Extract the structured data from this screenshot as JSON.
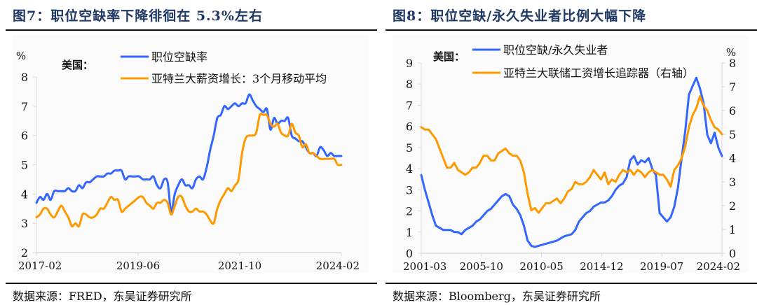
{
  "figures": [
    {
      "title": "图7：职位空缺率下降徘徊在 5.3%左右",
      "source": "数据来源：FRED，东吴证券研究所"
    },
    {
      "title": "图8：职位空缺/永久失业者比例大幅下降",
      "source": "数据来源：Bloomberg，东吴证券研究所"
    }
  ],
  "chart_data": [
    {
      "type": "line",
      "title": "职位空缺率下降徘徊在 5.3%左右",
      "region_label": "美国：",
      "ylabel": "%",
      "ylim": [
        2,
        8
      ],
      "yticks": [
        "2",
        "3",
        "4",
        "5",
        "6",
        "7",
        "8"
      ],
      "xticks": [
        "2017-02",
        "2019-06",
        "2021-10",
        "2024-02"
      ],
      "xrange": [
        "2017-02",
        "2024-02"
      ],
      "grid": false,
      "legend_position": "top-center",
      "colors": {
        "series1": "#3366ff",
        "series2": "#ff9900"
      },
      "series": [
        {
          "name": "职位空缺率",
          "axis": "left",
          "values": [
            3.7,
            3.9,
            3.8,
            4.0,
            3.8,
            4.1,
            4.1,
            4.1,
            4.1,
            4.2,
            4.1,
            4.1,
            4.3,
            4.2,
            4.4,
            4.4,
            4.5,
            4.6,
            4.6,
            4.6,
            4.7,
            4.7,
            4.8,
            4.8,
            4.8,
            4.5,
            4.6,
            4.6,
            4.6,
            4.6,
            4.5,
            4.5,
            4.5,
            4.6,
            4.3,
            4.2,
            4.5,
            4.4,
            3.4,
            4.0,
            4.3,
            4.5,
            4.3,
            4.3,
            4.2,
            4.5,
            4.6,
            4.5,
            4.9,
            5.5,
            6.0,
            6.6,
            6.7,
            7.0,
            6.9,
            7.0,
            7.1,
            7.0,
            7.1,
            7.1,
            7.4,
            7.2,
            7.0,
            6.9,
            6.8,
            6.9,
            6.2,
            6.6,
            6.4,
            6.5,
            6.5,
            6.6,
            6.0,
            5.9,
            5.8,
            5.8,
            5.6,
            5.4,
            5.4,
            5.3,
            5.6,
            5.5,
            5.3,
            5.4,
            5.3,
            5.3,
            5.3
          ]
        },
        {
          "name": "亚特兰大薪资增长：3个月移动平均",
          "axis": "left",
          "values": [
            3.2,
            3.3,
            3.5,
            3.5,
            3.3,
            3.2,
            3.4,
            3.6,
            3.4,
            3.2,
            2.9,
            3.0,
            2.9,
            3.3,
            3.3,
            3.2,
            3.2,
            3.3,
            3.5,
            3.5,
            3.7,
            3.9,
            3.8,
            3.8,
            3.4,
            3.5,
            3.6,
            3.7,
            3.8,
            3.9,
            3.9,
            3.7,
            3.6,
            3.5,
            3.7,
            3.7,
            3.8,
            3.7,
            3.3,
            3.6,
            3.9,
            3.9,
            3.6,
            3.4,
            3.4,
            3.5,
            3.4,
            3.4,
            3.3,
            3.1,
            3.0,
            3.5,
            3.8,
            4.0,
            4.2,
            4.1,
            4.3,
            4.5,
            5.4,
            5.9,
            6.0,
            6.0,
            6.1,
            6.7,
            6.7,
            6.7,
            6.4,
            6.3,
            6.4,
            6.1,
            6.0,
            6.0,
            6.4,
            6.1,
            6.0,
            5.6,
            5.7,
            5.4,
            5.4,
            5.3,
            5.2,
            5.2,
            5.2,
            5.2,
            5.2,
            5.0,
            5.0
          ]
        }
      ]
    },
    {
      "type": "line",
      "title": "职位空缺/永久失业者比例大幅下降",
      "region_label": "美国：",
      "ylabel_right": "%",
      "ylim": [
        0,
        9
      ],
      "ylim_right": [
        0,
        8
      ],
      "yticks": [
        "0",
        "1",
        "2",
        "3",
        "4",
        "5",
        "6",
        "7",
        "8",
        "9"
      ],
      "yticks_right": [
        "0",
        "1",
        "2",
        "3",
        "4",
        "5",
        "6",
        "7",
        "8"
      ],
      "xticks": [
        "2001-03",
        "2005-10",
        "2010-05",
        "2014-12",
        "2019-07",
        "2024-02"
      ],
      "xrange": [
        "2001-03",
        "2024-02"
      ],
      "grid": false,
      "legend_position": "top-center",
      "colors": {
        "series1": "#3366ff",
        "series2": "#ff9900"
      },
      "series": [
        {
          "name": "职位空缺/永久失业者",
          "axis": "left",
          "values": [
            3.7,
            3.0,
            2.4,
            1.8,
            1.3,
            1.2,
            1.1,
            1.1,
            1.1,
            1.0,
            1.0,
            0.9,
            1.1,
            1.2,
            1.3,
            1.5,
            1.6,
            1.8,
            2.0,
            2.1,
            2.3,
            2.5,
            2.7,
            2.8,
            2.7,
            2.3,
            2.1,
            1.8,
            1.3,
            0.6,
            0.35,
            0.3,
            0.35,
            0.4,
            0.45,
            0.5,
            0.55,
            0.6,
            0.7,
            0.8,
            0.85,
            0.9,
            1.1,
            1.5,
            1.7,
            1.9,
            2.0,
            2.2,
            2.3,
            2.4,
            2.4,
            2.5,
            2.7,
            3.0,
            3.2,
            3.3,
            3.6,
            4.4,
            4.6,
            4.2,
            4.4,
            4.3,
            4.5,
            4.0,
            3.7,
            1.9,
            1.7,
            1.5,
            1.7,
            2.2,
            3.1,
            4.5,
            5.8,
            7.5,
            7.9,
            8.3,
            7.8,
            7.1,
            5.6,
            5.2,
            5.7,
            5.0,
            4.6
          ]
        },
        {
          "name": "亚特兰大联储工资增长追踪器（右轴）",
          "axis": "right",
          "values": [
            5.3,
            5.2,
            5.2,
            5.0,
            4.8,
            4.4,
            4.0,
            3.6,
            3.6,
            3.8,
            3.5,
            3.4,
            3.3,
            3.4,
            3.6,
            3.6,
            3.8,
            4.1,
            4.1,
            3.9,
            3.9,
            4.2,
            4.3,
            4.4,
            4.2,
            4.1,
            4.1,
            3.9,
            3.4,
            2.5,
            1.8,
            1.9,
            1.7,
            1.9,
            2.1,
            2.1,
            2.2,
            2.3,
            2.1,
            2.3,
            2.6,
            2.7,
            3.0,
            2.9,
            2.9,
            3.0,
            3.2,
            3.5,
            3.3,
            3.1,
            3.4,
            2.9,
            3.1,
            3.0,
            3.3,
            3.5,
            3.4,
            3.5,
            3.3,
            3.5,
            3.4,
            3.2,
            3.4,
            3.5,
            3.4,
            3.3,
            3.3,
            3.1,
            2.8,
            3.5,
            3.7,
            4.0,
            4.5,
            5.3,
            5.8,
            6.1,
            6.6,
            6.2,
            6.0,
            5.6,
            5.3,
            5.2,
            5.0
          ]
        }
      ]
    }
  ]
}
